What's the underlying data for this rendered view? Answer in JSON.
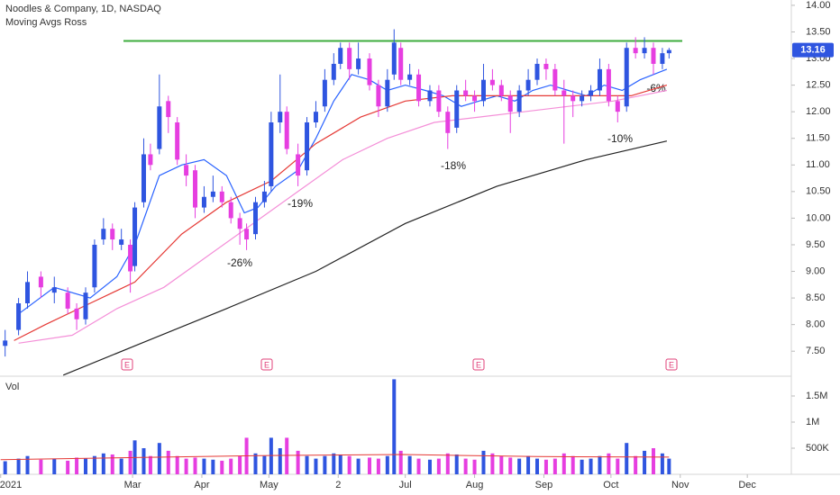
{
  "chart_data": [
    {
      "type": "candlestick",
      "title": "Noodles & Company, 1D, NASDAQ",
      "subtitle": "Moving Avgs Ross",
      "up_color": "#2f55e0",
      "down_color": "#e63ee0",
      "x": [
        2,
        8,
        12,
        18,
        24,
        30,
        34,
        38,
        42,
        46,
        50,
        54,
        58,
        60,
        64,
        67,
        71,
        75,
        79,
        83,
        87,
        91,
        95,
        99,
        103,
        107,
        110,
        114,
        118,
        121,
        125,
        128,
        133,
        137,
        141,
        145,
        149,
        152,
        156,
        160,
        165,
        169,
        173,
        176,
        179,
        183,
        187,
        192,
        196,
        200,
        204,
        208,
        212,
        216,
        220,
        224,
        228,
        232,
        236,
        240,
        244,
        248,
        252,
        256,
        260,
        264,
        268,
        272,
        276,
        280,
        284,
        288,
        292,
        296,
        299
      ],
      "candles": [
        [
          7.6,
          7.9,
          7.4,
          7.7
        ],
        [
          7.9,
          8.5,
          7.8,
          8.4
        ],
        [
          8.4,
          9.0,
          8.3,
          8.8
        ],
        [
          8.9,
          9.0,
          8.5,
          8.7
        ],
        [
          8.6,
          8.9,
          8.4,
          8.7
        ],
        [
          8.6,
          8.7,
          8.2,
          8.3
        ],
        [
          8.3,
          8.4,
          7.9,
          8.1
        ],
        [
          8.1,
          8.7,
          8.0,
          8.6
        ],
        [
          8.7,
          9.6,
          8.6,
          9.5
        ],
        [
          9.6,
          10.0,
          9.5,
          9.8
        ],
        [
          9.8,
          9.9,
          9.4,
          9.6
        ],
        [
          9.5,
          9.8,
          9.4,
          9.6
        ],
        [
          9.5,
          9.6,
          8.6,
          9.0
        ],
        [
          9.1,
          10.3,
          9.0,
          10.2
        ],
        [
          10.3,
          11.5,
          10.2,
          11.2
        ],
        [
          11.2,
          11.4,
          10.9,
          11.0
        ],
        [
          11.3,
          12.7,
          11.2,
          12.1
        ],
        [
          12.2,
          12.3,
          11.6,
          11.9
        ],
        [
          11.8,
          11.9,
          11.0,
          11.1
        ],
        [
          11.0,
          11.2,
          10.6,
          10.8
        ],
        [
          10.9,
          11.0,
          10.0,
          10.2
        ],
        [
          10.2,
          10.6,
          10.1,
          10.4
        ],
        [
          10.4,
          10.8,
          10.3,
          10.5
        ],
        [
          10.5,
          10.6,
          10.2,
          10.3
        ],
        [
          10.3,
          10.4,
          9.9,
          10.0
        ],
        [
          10.0,
          10.1,
          9.5,
          9.8
        ],
        [
          9.8,
          9.9,
          9.4,
          9.6
        ],
        [
          9.7,
          10.4,
          9.6,
          10.3
        ],
        [
          10.3,
          10.7,
          10.2,
          10.5
        ],
        [
          10.6,
          12.0,
          10.5,
          11.8
        ],
        [
          11.8,
          12.7,
          11.6,
          12.0
        ],
        [
          12.0,
          12.1,
          11.2,
          11.3
        ],
        [
          11.2,
          11.4,
          10.6,
          10.8
        ],
        [
          10.9,
          11.9,
          10.8,
          11.8
        ],
        [
          11.8,
          12.2,
          11.7,
          12.0
        ],
        [
          12.1,
          12.8,
          12.0,
          12.6
        ],
        [
          12.6,
          13.1,
          12.5,
          12.9
        ],
        [
          12.9,
          13.3,
          12.8,
          13.2
        ],
        [
          13.2,
          13.3,
          12.6,
          12.8
        ],
        [
          12.8,
          13.3,
          12.7,
          13.0
        ],
        [
          13.0,
          13.1,
          12.4,
          12.5
        ],
        [
          12.5,
          12.6,
          11.9,
          12.1
        ],
        [
          12.1,
          12.8,
          12.0,
          12.6
        ],
        [
          12.7,
          13.55,
          12.6,
          13.3
        ],
        [
          13.2,
          13.3,
          12.5,
          12.6
        ],
        [
          12.6,
          12.9,
          12.5,
          12.7
        ],
        [
          12.7,
          12.8,
          12.1,
          12.2
        ],
        [
          12.2,
          12.5,
          12.1,
          12.4
        ],
        [
          12.4,
          12.5,
          11.9,
          12.0
        ],
        [
          12.0,
          12.1,
          11.3,
          11.6
        ],
        [
          11.7,
          12.5,
          11.6,
          12.4
        ],
        [
          12.4,
          12.6,
          12.2,
          12.3
        ],
        [
          12.3,
          12.4,
          12.0,
          12.2
        ],
        [
          12.2,
          12.9,
          12.1,
          12.6
        ],
        [
          12.6,
          12.8,
          12.4,
          12.5
        ],
        [
          12.5,
          12.6,
          12.2,
          12.3
        ],
        [
          12.3,
          12.4,
          11.6,
          12.0
        ],
        [
          12.0,
          12.5,
          11.9,
          12.4
        ],
        [
          12.4,
          12.8,
          12.3,
          12.6
        ],
        [
          12.6,
          13.0,
          12.5,
          12.9
        ],
        [
          12.9,
          13.0,
          12.6,
          12.8
        ],
        [
          12.8,
          12.9,
          12.3,
          12.4
        ],
        [
          12.4,
          12.6,
          11.4,
          12.3
        ],
        [
          12.3,
          12.4,
          11.9,
          12.2
        ],
        [
          12.2,
          12.4,
          12.1,
          12.3
        ],
        [
          12.3,
          12.5,
          12.2,
          12.4
        ],
        [
          12.4,
          13.0,
          12.3,
          12.8
        ],
        [
          12.8,
          12.9,
          12.1,
          12.2
        ],
        [
          12.2,
          12.3,
          11.8,
          12.0
        ],
        [
          12.1,
          13.3,
          12.0,
          13.2
        ],
        [
          13.2,
          13.4,
          13.0,
          13.1
        ],
        [
          13.1,
          13.4,
          13.0,
          13.2
        ],
        [
          13.2,
          13.3,
          12.7,
          12.9
        ],
        [
          12.9,
          13.2,
          12.8,
          13.1
        ],
        [
          13.1,
          13.2,
          13.0,
          13.16
        ]
      ],
      "moving_averages": [
        {
          "color": "#2962ff",
          "x": [
            8,
            24,
            40,
            52,
            60,
            71,
            81,
            91,
            101,
            109,
            115,
            123,
            133,
            141,
            149,
            157,
            165,
            173,
            181,
            190,
            198,
            206,
            214,
            222,
            230,
            238,
            246,
            254,
            262,
            270,
            278,
            286,
            298
          ],
          "values": [
            8.2,
            8.7,
            8.5,
            8.9,
            9.5,
            10.8,
            11.0,
            11.1,
            10.8,
            10.1,
            10.2,
            10.6,
            10.9,
            11.5,
            12.2,
            12.7,
            12.6,
            12.4,
            12.5,
            12.4,
            12.3,
            12.1,
            12.2,
            12.3,
            12.2,
            12.4,
            12.5,
            12.4,
            12.3,
            12.5,
            12.4,
            12.6,
            12.8
          ]
        },
        {
          "color": "#e53935",
          "x": [
            6,
            20,
            40,
            60,
            81,
            101,
            121,
            141,
            161,
            181,
            202,
            222,
            242,
            262,
            282,
            298
          ],
          "values": [
            7.7,
            8.0,
            8.4,
            8.8,
            9.7,
            10.3,
            10.7,
            11.4,
            11.9,
            12.2,
            12.3,
            12.3,
            12.3,
            12.3,
            12.3,
            12.5
          ]
        },
        {
          "color": "#f48fd8",
          "x": [
            8,
            32,
            52,
            73,
            93,
            113,
            133,
            153,
            173,
            194,
            214,
            234,
            254,
            274,
            298
          ],
          "values": [
            7.65,
            7.8,
            8.3,
            8.7,
            9.3,
            9.9,
            10.5,
            11.1,
            11.5,
            11.8,
            11.9,
            12.0,
            12.1,
            12.2,
            12.4
          ]
        },
        {
          "color": "#222222",
          "x": [
            28,
            60,
            101,
            141,
            181,
            222,
            262,
            298
          ],
          "values": [
            7.05,
            7.6,
            8.3,
            9.0,
            9.9,
            10.6,
            11.1,
            11.45
          ]
        }
      ],
      "resistance": {
        "value": 13.33,
        "color": "#3dac3d"
      },
      "annotations": [
        "-26%",
        "-19%",
        "-18%",
        "-10%",
        "-6%"
      ],
      "earnings": [
        "E",
        "E",
        "E",
        "E"
      ],
      "xlim": [
        -0.3,
        354.5
      ],
      "ylim": [
        7.03,
        14.1
      ],
      "xticks": [
        {
          "value": 0,
          "label": "2021"
        },
        {
          "value": 59,
          "label": "Mar"
        },
        {
          "value": 90,
          "label": "Apr"
        },
        {
          "value": 120,
          "label": "May"
        },
        {
          "value": 151,
          "label": "2"
        },
        {
          "value": 181,
          "label": "Jul"
        },
        {
          "value": 212,
          "label": "Aug"
        },
        {
          "value": 243,
          "label": "Sep"
        },
        {
          "value": 273,
          "label": "Oct"
        },
        {
          "value": 304,
          "label": "Nov"
        },
        {
          "value": 334,
          "label": "Dec"
        }
      ],
      "yticks": [
        {
          "value": 7.5,
          "label": "7.50"
        },
        {
          "value": 8,
          "label": "8.00"
        },
        {
          "value": 8.5,
          "label": "8.50"
        },
        {
          "value": 9,
          "label": "9.00"
        },
        {
          "value": 9.5,
          "label": "9.50"
        },
        {
          "value": 10,
          "label": "10.00"
        },
        {
          "value": 10.5,
          "label": "10.50"
        },
        {
          "value": 11,
          "label": "11.00"
        },
        {
          "value": 11.5,
          "label": "11.50"
        },
        {
          "value": 12,
          "label": "12.00"
        },
        {
          "value": 12.5,
          "label": "12.50"
        },
        {
          "value": 13,
          "label": "13.00"
        },
        {
          "value": 13.5,
          "label": "13.50"
        },
        {
          "value": 14,
          "label": "14.00"
        }
      ]
    },
    {
      "type": "bar",
      "title": "Vol",
      "values": [
        250000,
        300000,
        350000,
        280000,
        300000,
        260000,
        320000,
        300000,
        350000,
        400000,
        380000,
        300000,
        450000,
        650000,
        500000,
        350000,
        600000,
        450000,
        350000,
        300000,
        320000,
        300000,
        280000,
        260000,
        300000,
        350000,
        700000,
        400000,
        350000,
        700000,
        500000,
        700000,
        450000,
        350000,
        300000,
        350000,
        400000,
        380000,
        350000,
        300000,
        320000,
        300000,
        350000,
        1820000,
        450000,
        350000,
        300000,
        280000,
        300000,
        400000,
        380000,
        300000,
        280000,
        450000,
        400000,
        350000,
        320000,
        300000,
        350000,
        300000,
        280000,
        300000,
        400000,
        350000,
        280000,
        300000,
        350000,
        400000,
        300000,
        600000,
        350000,
        450000,
        500000,
        400000,
        300000
      ],
      "ma": {
        "color": "#e53935",
        "x": [
          0,
          60,
          120,
          180,
          240,
          299
        ],
        "values": [
          280000,
          320000,
          360000,
          380000,
          340000,
          330000
        ]
      },
      "ylim": [
        0,
        1810000
      ],
      "yticks": [
        {
          "value": 500000,
          "label": "500K"
        },
        {
          "value": 1000000,
          "label": "1M"
        },
        {
          "value": 1500000,
          "label": "1.5M"
        }
      ]
    }
  ]
}
